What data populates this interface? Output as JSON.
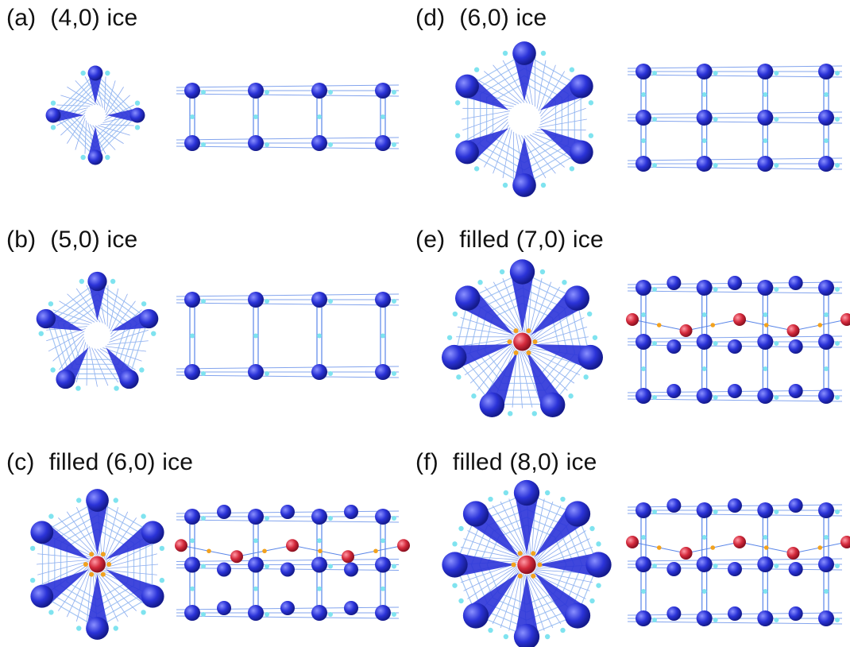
{
  "colors": {
    "oxygen": "#2b33d8",
    "hydrogen": "#7fe3ef",
    "bond": "#5a86e8",
    "filler": "#d42a3c",
    "filler_h": "#f2a21e"
  },
  "panels": [
    {
      "id": "a",
      "tag": "(a)",
      "label": "(4,0) ice",
      "n": 4,
      "filled": false
    },
    {
      "id": "b",
      "tag": "(b)",
      "label": "(5,0) ice",
      "n": 5,
      "filled": false
    },
    {
      "id": "c",
      "tag": "(c)",
      "label": "filled (6,0) ice",
      "n": 6,
      "filled": true
    },
    {
      "id": "d",
      "tag": "(d)",
      "label": "(6,0) ice",
      "n": 6,
      "filled": false
    },
    {
      "id": "e",
      "tag": "(e)",
      "label": "filled (7,0) ice",
      "n": 7,
      "filled": true
    },
    {
      "id": "f",
      "tag": "(f)",
      "label": "filled (8,0) ice",
      "n": 8,
      "filled": true
    }
  ]
}
